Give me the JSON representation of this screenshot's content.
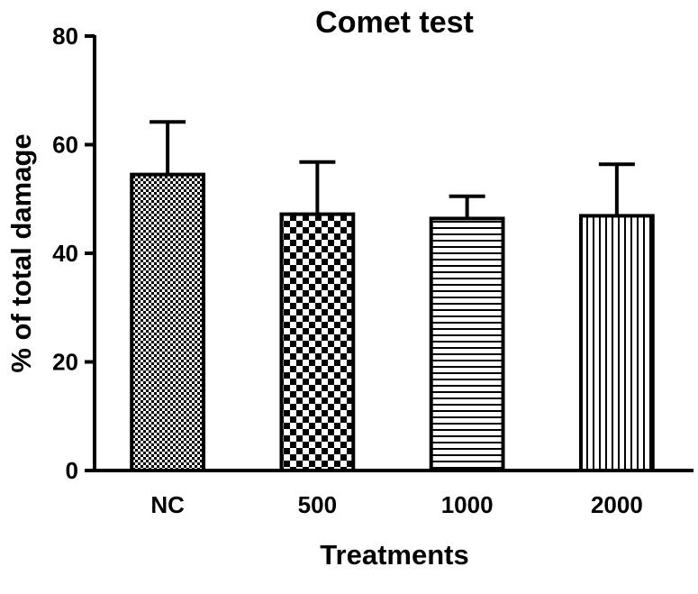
{
  "chart_data": {
    "type": "bar",
    "title": "Comet test",
    "xlabel": "Treatments",
    "ylabel": "% of total damage",
    "categories": [
      "NC",
      "500",
      "1000",
      "2000"
    ],
    "values": [
      54.5,
      47.2,
      46.4,
      46.9
    ],
    "error": [
      9.7,
      9.6,
      4.1,
      9.5
    ],
    "ylim": [
      0,
      80
    ],
    "yticks": [
      0,
      20,
      40,
      60,
      80
    ],
    "grid": false,
    "patterns": [
      "fine-checker",
      "coarse-checker",
      "horizontal-lines",
      "vertical-lines"
    ],
    "colors": {
      "bar_stroke": "#000000",
      "bar_fill": "#ffffff"
    }
  }
}
